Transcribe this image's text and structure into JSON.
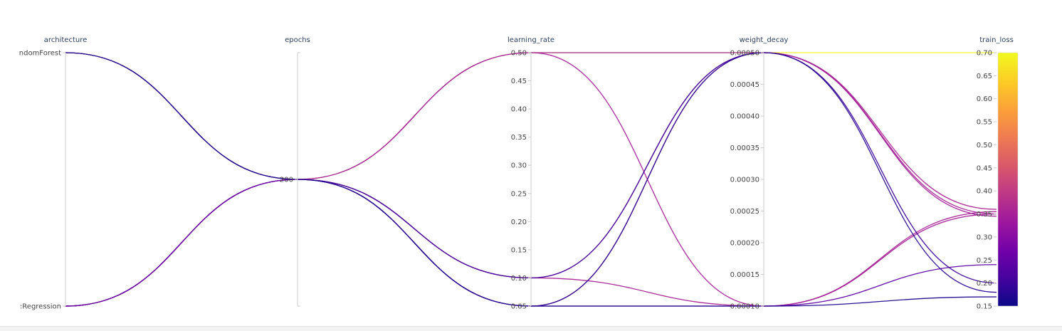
{
  "chart_data": {
    "type": "parallel_coordinates",
    "dimensions": [
      {
        "name": "architecture",
        "kind": "categorical",
        "ticks": [
          "RandomForest",
          "LogisticRegression"
        ],
        "tick_text": [
          "ndomForest",
          ":Regression"
        ]
      },
      {
        "name": "epochs",
        "kind": "numeric",
        "ticks": [
          200
        ],
        "tick_text": [
          "200"
        ],
        "range": [
          0,
          400
        ]
      },
      {
        "name": "learning_rate",
        "kind": "numeric",
        "range": [
          0.05,
          0.5
        ],
        "ticks": [
          0.05,
          0.1,
          0.15,
          0.2,
          0.25,
          0.3,
          0.35,
          0.4,
          0.45,
          0.5
        ],
        "tick_text": [
          "0.05",
          "0.10",
          "0.15",
          "0.20",
          "0.25",
          "0.30",
          "0.35",
          "0.40",
          "0.45",
          "0.50"
        ]
      },
      {
        "name": "weight_decay",
        "kind": "numeric",
        "range": [
          0.0001,
          0.0005
        ],
        "ticks": [
          0.0001,
          0.00015,
          0.0002,
          0.00025,
          0.0003,
          0.00035,
          0.0004,
          0.00045,
          0.0005
        ],
        "tick_text": [
          "0.00010",
          "0.00015",
          "0.00020",
          "0.00025",
          "0.00030",
          "0.00035",
          "0.00040",
          "0.00045",
          "0.00050"
        ]
      },
      {
        "name": "train_loss",
        "kind": "numeric",
        "range": [
          0.15,
          0.7
        ],
        "ticks": [
          0.15,
          0.2,
          0.25,
          0.3,
          0.35,
          0.4,
          0.45,
          0.5,
          0.55,
          0.6,
          0.65,
          0.7
        ],
        "tick_text": [
          "0.15",
          "0.20",
          "0.25",
          "0.30",
          "0.35",
          "0.40",
          "0.45",
          "0.50",
          "0.55",
          "0.60",
          "0.65",
          "0.70"
        ]
      }
    ],
    "runs": [
      {
        "architecture": "RandomForest",
        "epochs": 200,
        "learning_rate": 0.5,
        "weight_decay": 0.0005,
        "train_loss": 0.7
      },
      {
        "architecture": "RandomForest",
        "epochs": 200,
        "learning_rate": 0.1,
        "weight_decay": 0.0005,
        "train_loss": 0.2
      },
      {
        "architecture": "RandomForest",
        "epochs": 200,
        "learning_rate": 0.05,
        "weight_decay": 0.0005,
        "train_loss": 0.18
      },
      {
        "architecture": "RandomForest",
        "epochs": 200,
        "learning_rate": 0.05,
        "weight_decay": 0.0001,
        "train_loss": 0.17
      },
      {
        "architecture": "LogisticRegression",
        "epochs": 200,
        "learning_rate": 0.5,
        "weight_decay": 0.0001,
        "train_loss": 0.35
      },
      {
        "architecture": "LogisticRegression",
        "epochs": 200,
        "learning_rate": 0.1,
        "weight_decay": 0.0001,
        "train_loss": 0.355
      },
      {
        "architecture": "LogisticRegression",
        "epochs": 200,
        "learning_rate": 0.05,
        "weight_decay": 0.0005,
        "train_loss": 0.36
      },
      {
        "architecture": "LogisticRegression",
        "epochs": 200,
        "learning_rate": 0.1,
        "weight_decay": 0.0005,
        "train_loss": 0.345
      },
      {
        "architecture": "LogisticRegression",
        "epochs": 200,
        "learning_rate": 0.5,
        "weight_decay": 0.0005,
        "train_loss": 0.35
      },
      {
        "architecture": "LogisticRegression",
        "epochs": 200,
        "learning_rate": 0.05,
        "weight_decay": 0.0001,
        "train_loss": 0.24
      }
    ],
    "color_by": "train_loss",
    "colorscale": [
      "#0d0887",
      "#46039f",
      "#7201a8",
      "#9c179e",
      "#bd3786",
      "#d8576b",
      "#ed7953",
      "#fb9f3a",
      "#fdca26",
      "#f0f921"
    ],
    "colorbar_range": [
      0.15,
      0.7
    ],
    "grid": false
  }
}
